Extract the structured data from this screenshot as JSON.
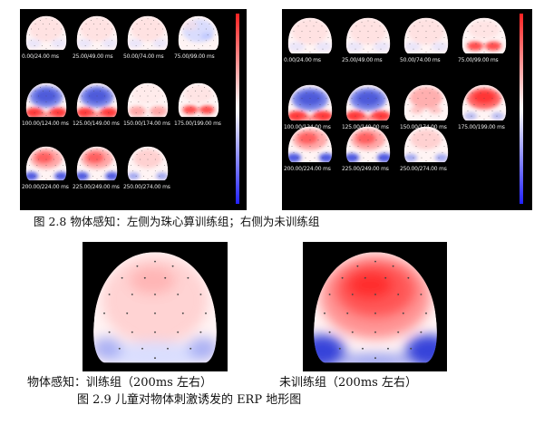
{
  "figure_2_8": {
    "caption": "图 2.8   物体感知：左侧为珠心算训练组；右侧为未训练组",
    "left_group": {
      "label": "珠心算训练组",
      "maps": [
        {
          "time": "0.00/24.00 ms",
          "pattern": "faint"
        },
        {
          "time": "25.00/49.00 ms",
          "pattern": "faint"
        },
        {
          "time": "50.00/74.00 ms",
          "pattern": "faint"
        },
        {
          "time": "75.00/99.00 ms",
          "pattern": "faint-blue"
        },
        {
          "time": "100.00/124.00 ms",
          "pattern": "blue-center-red-bottom"
        },
        {
          "time": "125.00/149.00 ms",
          "pattern": "blue-center-red-bottom"
        },
        {
          "time": "150.00/174.00 ms",
          "pattern": "light-red-bottom"
        },
        {
          "time": "175.00/199.00 ms",
          "pattern": "red-bottom"
        },
        {
          "time": "200.00/224.00 ms",
          "pattern": "red-top-blue-bottom"
        },
        {
          "time": "225.00/249.00 ms",
          "pattern": "red-top-blue-bottom"
        },
        {
          "time": "250.00/274.00 ms",
          "pattern": "faint-red-blue"
        }
      ]
    },
    "right_group": {
      "label": "未训练组",
      "maps": [
        {
          "time": "0.00/24.00 ms",
          "pattern": "faint"
        },
        {
          "time": "25.00/49.00 ms",
          "pattern": "faint"
        },
        {
          "time": "50.00/74.00 ms",
          "pattern": "faint"
        },
        {
          "time": "75.00/99.00 ms",
          "pattern": "red-bottom"
        },
        {
          "time": "100.00/124.00 ms",
          "pattern": "blue-center-red-bottom"
        },
        {
          "time": "125.00/149.00 ms",
          "pattern": "blue-center-red-bottom"
        },
        {
          "time": "150.00/174.00 ms",
          "pattern": "light-red-top"
        },
        {
          "time": "175.00/199.00 ms",
          "pattern": "red-top"
        },
        {
          "time": "200.00/224.00 ms",
          "pattern": "red-top-blue-bottom"
        },
        {
          "time": "225.00/249.00 ms",
          "pattern": "red-top-blue-bottom"
        },
        {
          "time": "250.00/274.00 ms",
          "pattern": "faint-red-blue"
        }
      ]
    },
    "labels_shown": {
      "left": [
        "0.00/24.00 ms25.00/49.00 ms50.00/74.00 ms75.00/99.00 ms",
        "100.00/124.00 ms125.00/149.00 ms150.00/174.00 ms175.00/199.00 ms",
        "200.00/224.00 ms225.00/249.00 ms250.00/274.00 ms"
      ]
    },
    "colorbar": {
      "top": "#ff2222",
      "middle": "#ffffff",
      "bottom": "#2222ff"
    }
  },
  "figure_2_9": {
    "left_caption": "物体感知：训练组（200ms 左右）",
    "right_caption": "未训练组（200ms 左右）",
    "caption": "图 2.9 儿童对物体刺激诱发的 ERP 地形图",
    "left_map": {
      "pattern": "light-red-top-light-blue-bottom"
    },
    "right_map": {
      "pattern": "strong-red-top-blue-bottom"
    }
  },
  "colors": {
    "positive": "#ff3333",
    "negative": "#3333ff",
    "neutral": "#ffffff",
    "background": "#000000"
  }
}
